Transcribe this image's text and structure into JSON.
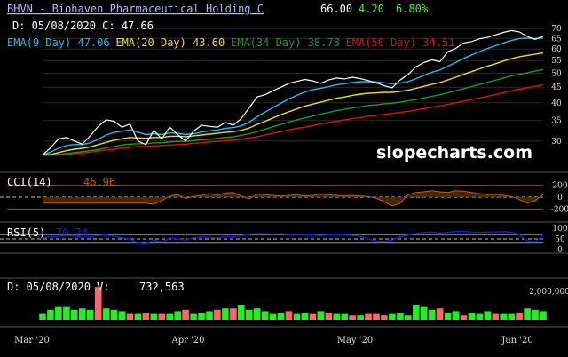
{
  "header": {
    "symbol_title": "BHVN - Biohaven Pharmaceutical Holding C",
    "price": "66.00",
    "change": "4.20",
    "change_pct": "6.80%",
    "date_line": "D: 05/08/2020 C: 47.66",
    "watermark": "slopecharts.com"
  },
  "colors": {
    "background": "#000000",
    "grid": "#2a2a2a",
    "title": "#b7b7ff",
    "price": "#ffffff",
    "change": "#33ff33",
    "ema9": "#22bbee",
    "ema20": "#eedd22",
    "ema34": "#229922",
    "ema50": "#dd1111",
    "cci": "#c0600a",
    "rsi": "#1a1aee",
    "vol_up": "#22ee22",
    "vol_down": "#ff6666"
  },
  "ema_legend": [
    {
      "label": "EMA(9 Day)",
      "value": "47.06",
      "color": "#22bbee"
    },
    {
      "label": "EMA(20 Day)",
      "value": "43.60",
      "color": "#eedd22"
    },
    {
      "label": "EMA(34 Day)",
      "value": "38.78",
      "color": "#229922"
    },
    {
      "label": "EMA(50 Day)",
      "value": "34.51",
      "color": "#dd1111"
    }
  ],
  "cci": {
    "label": "CCI(14)",
    "value": "46.96",
    "ticks": [
      "200",
      "0",
      "-200"
    ]
  },
  "rsi": {
    "label": "RSI(5)",
    "value": "70.24",
    "ticks": [
      "100",
      "50",
      "0"
    ]
  },
  "volume": {
    "label": "D: 05/08/2020 V:",
    "value": "732,563",
    "tick": "2,000,000"
  },
  "x_axis": {
    "labels": [
      "Mar '20",
      "Apr '20",
      "May '20",
      "Jun '20"
    ]
  },
  "chart_data": [
    {
      "type": "line",
      "title": "BHVN - Biohaven Pharmaceutical Holding C",
      "ylim": [
        25,
        72
      ],
      "y_ticks": [
        30,
        35,
        40,
        45,
        50,
        55,
        60,
        65,
        70
      ],
      "scale": "log",
      "grid": true,
      "x_labels": [
        "Mar '20",
        "Apr '20",
        "May '20",
        "Jun '20"
      ],
      "series": [
        {
          "name": "Price",
          "color": "#ffffff",
          "values": [
            27.0,
            28.5,
            30.5,
            30.8,
            30.0,
            29.3,
            31.2,
            33.5,
            35.2,
            34.8,
            33.3,
            34.1,
            30.0,
            29.2,
            32.5,
            30.5,
            33.3,
            31.5,
            30.0,
            32.3,
            33.8,
            33.5,
            33.3,
            34.5,
            33.8,
            35.5,
            38.5,
            41.8,
            42.5,
            43.8,
            45.0,
            46.3,
            47.0,
            47.7,
            47.2,
            46.3,
            47.5,
            48.2,
            47.9,
            48.5,
            48.0,
            47.3,
            46.5,
            45.5,
            44.8,
            47.5,
            49.5,
            52.5,
            54.2,
            55.3,
            54.5,
            58.8,
            60.3,
            62.8,
            63.5,
            64.8,
            65.5,
            66.8,
            68.0,
            69.0,
            68.3,
            66.0,
            64.5,
            66.0
          ]
        },
        {
          "name": "EMA(9 Day)",
          "color": "#22bbee",
          "values": [
            27.0,
            27.6,
            28.4,
            29.0,
            29.2,
            29.2,
            29.6,
            30.4,
            31.4,
            32.0,
            32.3,
            32.6,
            32.1,
            31.5,
            31.7,
            31.5,
            31.9,
            31.8,
            31.5,
            31.7,
            32.1,
            32.4,
            32.6,
            33.0,
            33.2,
            33.6,
            34.6,
            36.0,
            37.3,
            38.6,
            39.9,
            41.2,
            42.3,
            43.4,
            44.2,
            44.6,
            45.2,
            45.8,
            46.2,
            46.6,
            46.9,
            46.9,
            46.8,
            46.5,
            46.2,
            46.4,
            46.9,
            48.0,
            49.2,
            50.4,
            51.2,
            52.7,
            54.2,
            55.9,
            57.4,
            58.9,
            60.2,
            61.5,
            62.8,
            64.0,
            64.9,
            65.1,
            65.0,
            65.2
          ]
        },
        {
          "name": "EMA(20 Day)",
          "color": "#eedd22",
          "values": [
            27.0,
            27.1,
            27.5,
            27.9,
            28.2,
            28.4,
            28.7,
            29.2,
            29.7,
            30.2,
            30.5,
            30.8,
            30.7,
            30.6,
            30.8,
            30.8,
            31.1,
            31.1,
            31.0,
            31.2,
            31.4,
            31.6,
            31.8,
            32.0,
            32.2,
            32.5,
            33.1,
            34.0,
            34.8,
            35.7,
            36.6,
            37.4,
            38.2,
            39.0,
            39.6,
            40.2,
            40.8,
            41.4,
            41.8,
            42.3,
            42.7,
            43.0,
            43.1,
            43.3,
            43.3,
            43.6,
            44.0,
            44.6,
            45.3,
            46.0,
            46.6,
            47.5,
            48.5,
            49.6,
            50.6,
            51.7,
            52.7,
            53.7,
            54.8,
            55.8,
            56.6,
            57.2,
            57.7,
            58.3
          ]
        },
        {
          "name": "EMA(34 Day)",
          "color": "#229922",
          "values": [
            27.0,
            27.0,
            27.1,
            27.3,
            27.5,
            27.7,
            27.9,
            28.1,
            28.5,
            28.8,
            29.1,
            29.3,
            29.4,
            29.4,
            29.6,
            29.6,
            29.8,
            29.9,
            29.9,
            30.1,
            30.3,
            30.4,
            30.6,
            30.8,
            31.0,
            31.3,
            31.7,
            32.2,
            32.8,
            33.4,
            34.0,
            34.6,
            35.2,
            35.7,
            36.2,
            36.7,
            37.2,
            37.7,
            38.1,
            38.5,
            38.8,
            39.2,
            39.4,
            39.7,
            39.9,
            40.2,
            40.6,
            41.0,
            41.5,
            42.0,
            42.5,
            43.1,
            43.8,
            44.5,
            45.2,
            45.9,
            46.7,
            47.4,
            48.2,
            49.0,
            49.6,
            50.2,
            50.8,
            51.4
          ]
        },
        {
          "name": "EMA(50 Day)",
          "color": "#dd1111",
          "values": [
            27.0,
            27.0,
            27.1,
            27.2,
            27.3,
            27.4,
            27.6,
            27.8,
            28.0,
            28.2,
            28.4,
            28.6,
            28.8,
            28.8,
            28.9,
            29.0,
            29.1,
            29.2,
            29.3,
            29.5,
            29.6,
            29.8,
            29.9,
            30.1,
            30.2,
            30.4,
            30.7,
            31.0,
            31.4,
            31.8,
            32.2,
            32.6,
            33.0,
            33.3,
            33.7,
            34.1,
            34.5,
            34.8,
            35.2,
            35.5,
            35.8,
            36.1,
            36.4,
            36.7,
            36.9,
            37.2,
            37.5,
            37.9,
            38.3,
            38.7,
            39.1,
            39.5,
            40.0,
            40.5,
            41.0,
            41.5,
            42.0,
            42.6,
            43.2,
            43.8,
            44.3,
            44.8,
            45.3,
            45.8
          ]
        }
      ]
    },
    {
      "type": "area",
      "title": "CCI(14)",
      "y_ticks": [
        200,
        0,
        -200
      ],
      "ylim": [
        -300,
        300
      ],
      "series": [
        {
          "name": "CCI(14)",
          "color": "#c0600a",
          "values": [
            -100,
            -100,
            -100,
            -100,
            -100,
            -100,
            -100,
            -100,
            -100,
            -100,
            -100,
            -100,
            -100,
            -100,
            -120,
            -60,
            20,
            40,
            -20,
            10,
            30,
            60,
            30,
            70,
            80,
            20,
            -30,
            50,
            40,
            30,
            20,
            30,
            40,
            20,
            30,
            50,
            40,
            30,
            20,
            30,
            20,
            10,
            -20,
            -80,
            -150,
            -100,
            40,
            80,
            90,
            110,
            90,
            80,
            110,
            100,
            80,
            60,
            40,
            50,
            30,
            10,
            -40,
            -100,
            -60,
            47
          ]
        }
      ]
    },
    {
      "type": "line",
      "title": "RSI(5)",
      "y_ticks": [
        100,
        50,
        0
      ],
      "ylim": [
        0,
        100
      ],
      "series": [
        {
          "name": "RSI(5)",
          "color": "#1a1aee",
          "values": [
            55,
            60,
            62,
            65,
            63,
            58,
            60,
            66,
            68,
            62,
            55,
            50,
            30,
            25,
            45,
            35,
            55,
            50,
            45,
            55,
            60,
            58,
            56,
            62,
            60,
            65,
            72,
            75,
            74,
            72,
            74,
            70,
            72,
            70,
            68,
            66,
            68,
            70,
            68,
            66,
            62,
            50,
            40,
            38,
            45,
            60,
            68,
            75,
            80,
            82,
            78,
            80,
            85,
            86,
            82,
            80,
            82,
            83,
            84,
            82,
            70,
            40,
            35,
            70
          ]
        }
      ]
    },
    {
      "type": "bar",
      "title": "Volume",
      "ylim": [
        0,
        2500000
      ],
      "y_ticks": [
        2000000
      ],
      "series": [
        {
          "name": "Volume",
          "up_color": "#22ee22",
          "down_color": "#ff6666",
          "values": [
            400000,
            700000,
            900000,
            900000,
            700000,
            800000,
            700000,
            2300000,
            800000,
            700000,
            600000,
            400000,
            400000,
            500000,
            400000,
            400000,
            400000,
            600000,
            700000,
            400000,
            500000,
            600000,
            700000,
            800000,
            800000,
            1000000,
            700000,
            800000,
            600000,
            400000,
            500000,
            600000,
            400000,
            500000,
            400000,
            600000,
            500000,
            400000,
            400000,
            300000,
            300000,
            400000,
            400000,
            300000,
            400000,
            500000,
            300000,
            1000000,
            900000,
            700000,
            800000,
            500000,
            600000,
            300000,
            500000,
            400000,
            600000,
            400000,
            400000,
            400000,
            500000,
            800000,
            700000,
            600000
          ],
          "up": [
            1,
            1,
            1,
            1,
            1,
            1,
            1,
            0,
            1,
            1,
            1,
            0,
            1,
            0,
            1,
            0,
            1,
            1,
            0,
            1,
            1,
            1,
            0,
            1,
            0,
            1,
            1,
            1,
            1,
            1,
            1,
            0,
            1,
            1,
            0,
            1,
            0,
            1,
            1,
            0,
            1,
            0,
            0,
            0,
            1,
            1,
            1,
            1,
            1,
            1,
            0,
            1,
            1,
            0,
            1,
            1,
            1,
            0,
            1,
            1,
            0,
            1,
            1,
            1
          ]
        }
      ]
    }
  ]
}
